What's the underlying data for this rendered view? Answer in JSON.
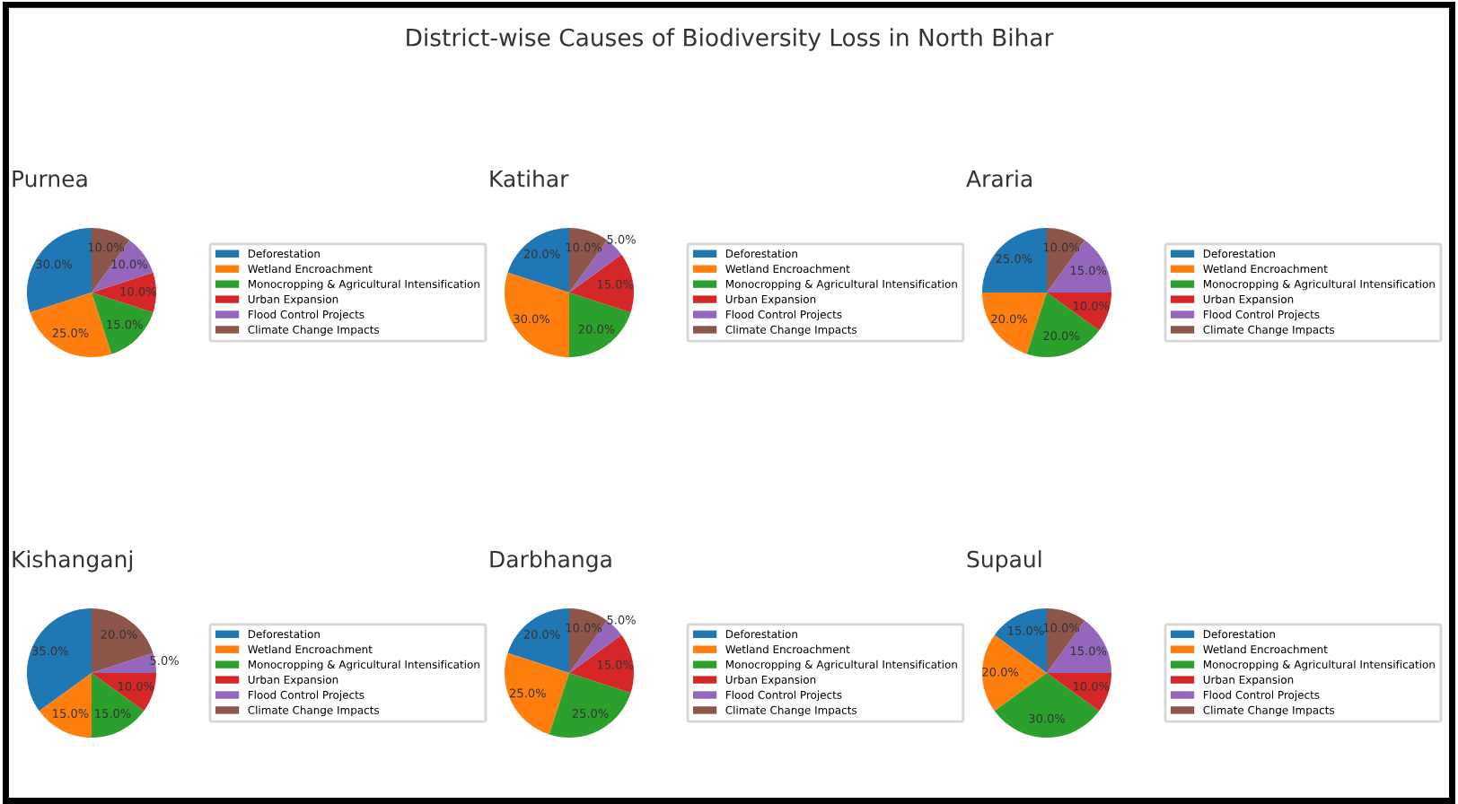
{
  "chart_data": [
    {
      "type": "pie",
      "title": "Purnea",
      "annotations": [
        "District-wise Causes of Biodiversity Loss in North Bihar"
      ],
      "categories": [
        "Deforestation",
        "Wetland Encroachment",
        "Monocropping & Agricultural Intensification",
        "Urban Expansion",
        "Flood Control Projects",
        "Climate Change Impacts"
      ],
      "values": [
        30,
        25,
        15,
        10,
        10,
        10
      ],
      "value_labels": [
        "30.0%",
        "25.0%",
        "15.0%",
        "10.0%",
        "10.0%",
        "10.0%"
      ],
      "colors": [
        "#1f77b4",
        "#ff7f0e",
        "#2ca02c",
        "#d62728",
        "#9467bd",
        "#8c564b"
      ],
      "legend": "right"
    },
    {
      "type": "pie",
      "title": "Katihar",
      "categories": [
        "Deforestation",
        "Wetland Encroachment",
        "Monocropping & Agricultural Intensification",
        "Urban Expansion",
        "Flood Control Projects",
        "Climate Change Impacts"
      ],
      "values": [
        20,
        30,
        20,
        15,
        5,
        10
      ],
      "value_labels": [
        "20.0%",
        "30.0%",
        "20.0%",
        "15.0%",
        "5.0%",
        "10.0%"
      ],
      "colors": [
        "#1f77b4",
        "#ff7f0e",
        "#2ca02c",
        "#d62728",
        "#9467bd",
        "#8c564b"
      ],
      "legend": "right"
    },
    {
      "type": "pie",
      "title": "Araria",
      "categories": [
        "Deforestation",
        "Wetland Encroachment",
        "Monocropping & Agricultural Intensification",
        "Urban Expansion",
        "Flood Control Projects",
        "Climate Change Impacts"
      ],
      "values": [
        25,
        20,
        20,
        10,
        15,
        10
      ],
      "value_labels": [
        "25.0%",
        "20.0%",
        "20.0%",
        "10.0%",
        "15.0%",
        "10.0%"
      ],
      "colors": [
        "#1f77b4",
        "#ff7f0e",
        "#2ca02c",
        "#d62728",
        "#9467bd",
        "#8c564b"
      ],
      "legend": "right"
    },
    {
      "type": "pie",
      "title": "Kishanganj",
      "categories": [
        "Deforestation",
        "Wetland Encroachment",
        "Monocropping & Agricultural Intensification",
        "Urban Expansion",
        "Flood Control Projects",
        "Climate Change Impacts"
      ],
      "values": [
        35,
        15,
        15,
        10,
        5,
        20
      ],
      "value_labels": [
        "35.0%",
        "15.0%",
        "15.0%",
        "10.0%",
        "5.0%",
        "20.0%"
      ],
      "colors": [
        "#1f77b4",
        "#ff7f0e",
        "#2ca02c",
        "#d62728",
        "#9467bd",
        "#8c564b"
      ],
      "legend": "right"
    },
    {
      "type": "pie",
      "title": "Darbhanga",
      "categories": [
        "Deforestation",
        "Wetland Encroachment",
        "Monocropping & Agricultural Intensification",
        "Urban Expansion",
        "Flood Control Projects",
        "Climate Change Impacts"
      ],
      "values": [
        20,
        25,
        25,
        15,
        5,
        10
      ],
      "value_labels": [
        "20.0%",
        "25.0%",
        "25.0%",
        "15.0%",
        "5.0%",
        "10.0%"
      ],
      "colors": [
        "#1f77b4",
        "#ff7f0e",
        "#2ca02c",
        "#d62728",
        "#9467bd",
        "#8c564b"
      ],
      "legend": "right"
    },
    {
      "type": "pie",
      "title": "Supaul",
      "categories": [
        "Deforestation",
        "Wetland Encroachment",
        "Monocropping & Agricultural Intensification",
        "Urban Expansion",
        "Flood Control Projects",
        "Climate Change Impacts"
      ],
      "values": [
        15,
        20,
        30,
        10,
        15,
        10
      ],
      "value_labels": [
        "15.0%",
        "20.0%",
        "30.0%",
        "10.0%",
        "15.0%",
        "10.0%"
      ],
      "colors": [
        "#1f77b4",
        "#ff7f0e",
        "#2ca02c",
        "#d62728",
        "#9467bd",
        "#8c564b"
      ],
      "legend": "right"
    }
  ]
}
